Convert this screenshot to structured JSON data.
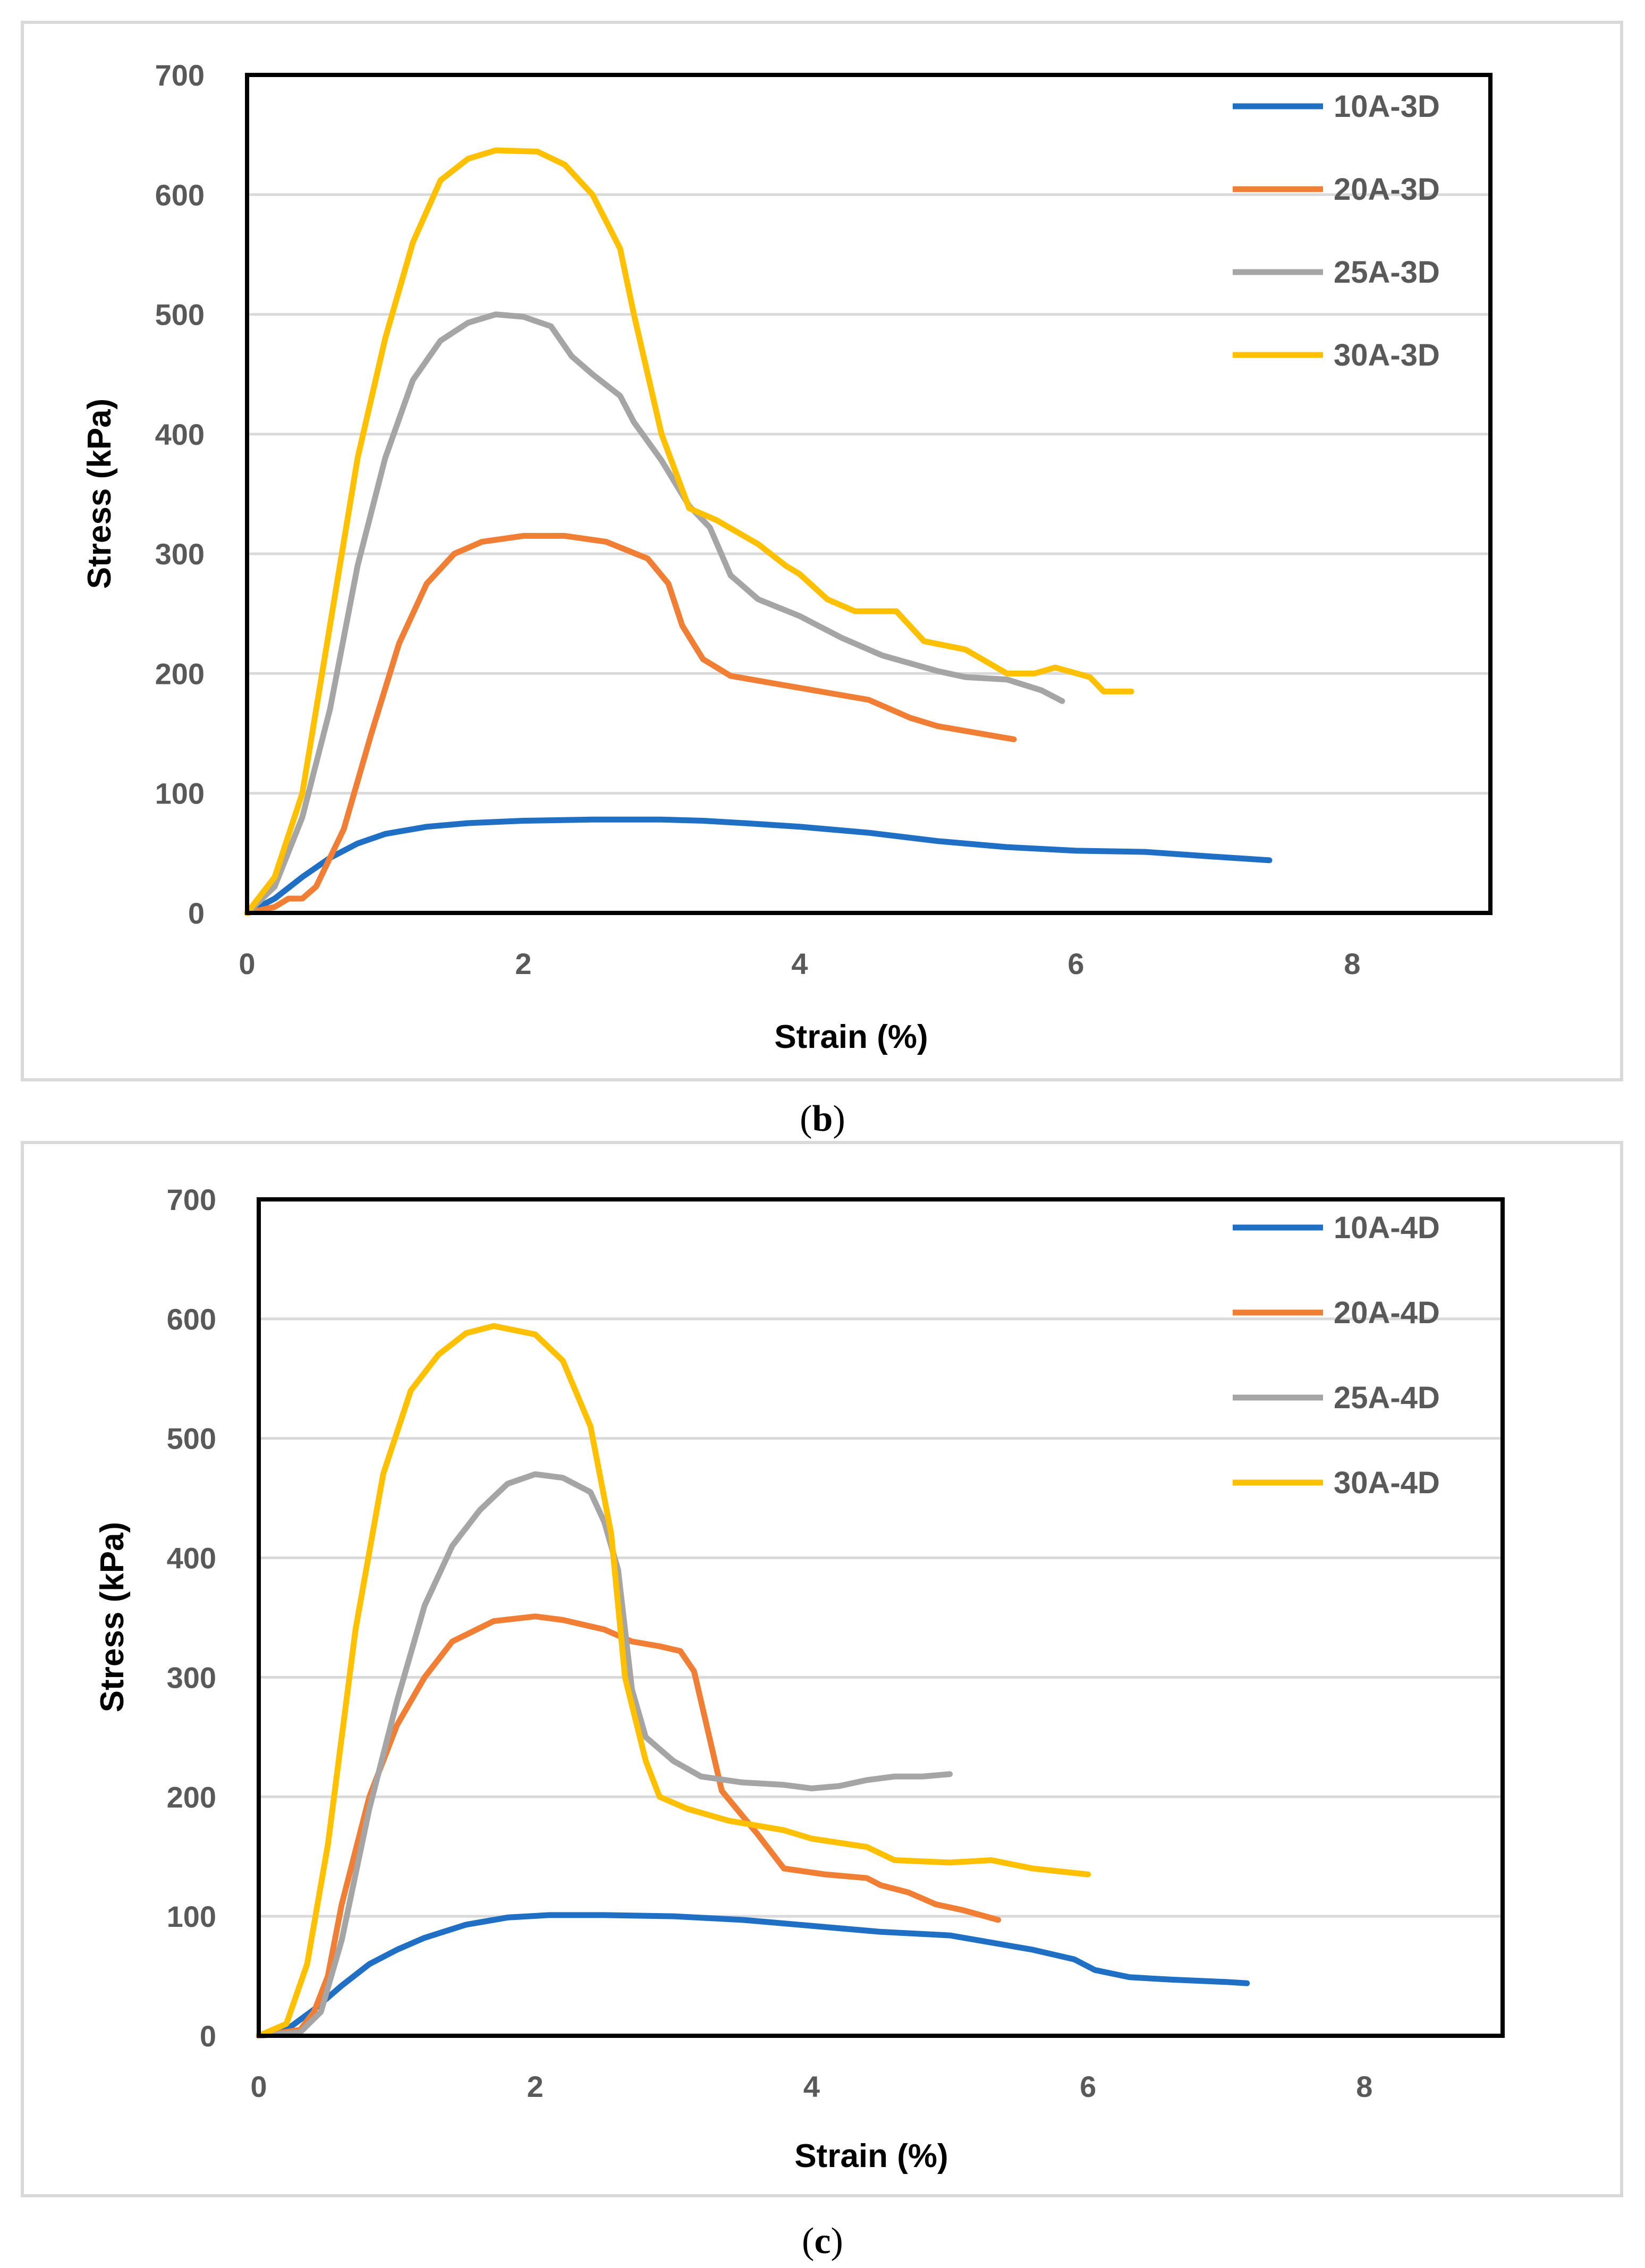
{
  "chart_data": [
    {
      "type": "line",
      "caption": "(b)",
      "caption_open": "(",
      "caption_letter": "b",
      "caption_close": ")",
      "xlabel": "Strain (%)",
      "ylabel": "Stress (kPa)",
      "xlim": [
        0,
        9
      ],
      "ylim": [
        0,
        700
      ],
      "xticks": [
        "0",
        "2",
        "4",
        "6",
        "8"
      ],
      "yticks": [
        "0",
        "100",
        "200",
        "300",
        "400",
        "500",
        "600",
        "700"
      ],
      "grid": "horizontal",
      "legend_position": "top-right",
      "series": [
        {
          "name": "10A-3D",
          "color": "#1f6fc5",
          "points": [
            [
              0,
              0
            ],
            [
              0.2,
              12
            ],
            [
              0.4,
              30
            ],
            [
              0.6,
              46
            ],
            [
              0.8,
              58
            ],
            [
              1.0,
              66
            ],
            [
              1.3,
              72
            ],
            [
              1.6,
              75
            ],
            [
              2.0,
              77
            ],
            [
              2.5,
              78
            ],
            [
              3.0,
              78
            ],
            [
              3.3,
              77
            ],
            [
              3.6,
              75
            ],
            [
              4.0,
              72
            ],
            [
              4.5,
              67
            ],
            [
              5.0,
              60
            ],
            [
              5.5,
              55
            ],
            [
              6.0,
              52
            ],
            [
              6.5,
              51
            ],
            [
              7.0,
              47
            ],
            [
              7.4,
              44
            ]
          ]
        },
        {
          "name": "20A-3D",
          "color": "#f07f35",
          "points": [
            [
              0,
              0
            ],
            [
              0.2,
              5
            ],
            [
              0.3,
              12
            ],
            [
              0.4,
              12
            ],
            [
              0.5,
              22
            ],
            [
              0.7,
              70
            ],
            [
              0.9,
              150
            ],
            [
              1.1,
              225
            ],
            [
              1.3,
              275
            ],
            [
              1.5,
              300
            ],
            [
              1.7,
              310
            ],
            [
              2.0,
              315
            ],
            [
              2.3,
              315
            ],
            [
              2.6,
              310
            ],
            [
              2.9,
              296
            ],
            [
              3.05,
              275
            ],
            [
              3.15,
              240
            ],
            [
              3.3,
              212
            ],
            [
              3.5,
              198
            ],
            [
              3.8,
              192
            ],
            [
              4.2,
              184
            ],
            [
              4.5,
              178
            ],
            [
              4.8,
              163
            ],
            [
              5.0,
              156
            ],
            [
              5.3,
              150
            ],
            [
              5.55,
              145
            ]
          ]
        },
        {
          "name": "25A-3D",
          "color": "#a5a5a5",
          "points": [
            [
              0,
              0
            ],
            [
              0.2,
              22
            ],
            [
              0.4,
              80
            ],
            [
              0.6,
              170
            ],
            [
              0.8,
              290
            ],
            [
              1.0,
              380
            ],
            [
              1.2,
              445
            ],
            [
              1.4,
              478
            ],
            [
              1.6,
              493
            ],
            [
              1.8,
              500
            ],
            [
              2.0,
              498
            ],
            [
              2.2,
              490
            ],
            [
              2.35,
              465
            ],
            [
              2.5,
              450
            ],
            [
              2.7,
              432
            ],
            [
              2.8,
              410
            ],
            [
              3.0,
              378
            ],
            [
              3.2,
              340
            ],
            [
              3.35,
              322
            ],
            [
              3.5,
              282
            ],
            [
              3.7,
              262
            ],
            [
              4.0,
              248
            ],
            [
              4.3,
              230
            ],
            [
              4.6,
              215
            ],
            [
              5.0,
              202
            ],
            [
              5.2,
              197
            ],
            [
              5.5,
              195
            ],
            [
              5.75,
              186
            ],
            [
              5.9,
              177
            ]
          ]
        },
        {
          "name": "30A-3D",
          "color": "#ffc000",
          "points": [
            [
              0,
              0
            ],
            [
              0.2,
              30
            ],
            [
              0.4,
              100
            ],
            [
              0.6,
              240
            ],
            [
              0.8,
              380
            ],
            [
              1.0,
              480
            ],
            [
              1.2,
              560
            ],
            [
              1.4,
              612
            ],
            [
              1.6,
              630
            ],
            [
              1.8,
              637
            ],
            [
              2.1,
              636
            ],
            [
              2.3,
              625
            ],
            [
              2.5,
              600
            ],
            [
              2.7,
              555
            ],
            [
              2.8,
              500
            ],
            [
              3.0,
              400
            ],
            [
              3.2,
              338
            ],
            [
              3.4,
              328
            ],
            [
              3.7,
              308
            ],
            [
              3.9,
              290
            ],
            [
              4.0,
              283
            ],
            [
              4.2,
              262
            ],
            [
              4.4,
              252
            ],
            [
              4.7,
              252
            ],
            [
              4.9,
              227
            ],
            [
              5.2,
              220
            ],
            [
              5.5,
              200
            ],
            [
              5.7,
              200
            ],
            [
              5.85,
              205
            ],
            [
              6.1,
              197
            ],
            [
              6.2,
              185
            ],
            [
              6.4,
              185
            ]
          ]
        }
      ]
    },
    {
      "type": "line",
      "caption": "(c)",
      "caption_open": "(",
      "caption_letter": "c",
      "caption_close": ")",
      "xlabel": "Strain (%)",
      "ylabel": "Stress (kPa)",
      "xlim": [
        0,
        9
      ],
      "ylim": [
        0,
        700
      ],
      "xticks": [
        "0",
        "2",
        "4",
        "6",
        "8"
      ],
      "yticks": [
        "0",
        "100",
        "200",
        "300",
        "400",
        "500",
        "600",
        "700"
      ],
      "grid": "horizontal",
      "legend_position": "top-right",
      "series": [
        {
          "name": "10A-4D",
          "color": "#1f6fc5",
          "points": [
            [
              0,
              0
            ],
            [
              0.2,
              5
            ],
            [
              0.4,
              22
            ],
            [
              0.6,
              42
            ],
            [
              0.8,
              60
            ],
            [
              1.0,
              72
            ],
            [
              1.2,
              82
            ],
            [
              1.5,
              93
            ],
            [
              1.8,
              99
            ],
            [
              2.1,
              101
            ],
            [
              2.5,
              101
            ],
            [
              3.0,
              100
            ],
            [
              3.5,
              97
            ],
            [
              4.0,
              92
            ],
            [
              4.5,
              87
            ],
            [
              5.0,
              84
            ],
            [
              5.3,
              78
            ],
            [
              5.6,
              72
            ],
            [
              5.9,
              64
            ],
            [
              6.05,
              55
            ],
            [
              6.3,
              49
            ],
            [
              6.6,
              47
            ],
            [
              7.0,
              45
            ],
            [
              7.15,
              44
            ]
          ]
        },
        {
          "name": "20A-4D",
          "color": "#f07f35",
          "points": [
            [
              0,
              0
            ],
            [
              0.3,
              5
            ],
            [
              0.4,
              20
            ],
            [
              0.5,
              50
            ],
            [
              0.6,
              110
            ],
            [
              0.8,
              200
            ],
            [
              1.0,
              260
            ],
            [
              1.2,
              300
            ],
            [
              1.4,
              330
            ],
            [
              1.7,
              347
            ],
            [
              2.0,
              351
            ],
            [
              2.2,
              348
            ],
            [
              2.5,
              340
            ],
            [
              2.7,
              330
            ],
            [
              2.9,
              326
            ],
            [
              3.05,
              322
            ],
            [
              3.15,
              305
            ],
            [
              3.25,
              255
            ],
            [
              3.35,
              205
            ],
            [
              3.6,
              170
            ],
            [
              3.8,
              140
            ],
            [
              4.1,
              135
            ],
            [
              4.4,
              132
            ],
            [
              4.5,
              126
            ],
            [
              4.7,
              120
            ],
            [
              4.9,
              110
            ],
            [
              5.1,
              105
            ],
            [
              5.35,
              97
            ]
          ]
        },
        {
          "name": "25A-4D",
          "color": "#a5a5a5",
          "points": [
            [
              0,
              0
            ],
            [
              0.3,
              3
            ],
            [
              0.45,
              20
            ],
            [
              0.6,
              80
            ],
            [
              0.8,
              190
            ],
            [
              1.0,
              280
            ],
            [
              1.2,
              360
            ],
            [
              1.4,
              410
            ],
            [
              1.6,
              440
            ],
            [
              1.8,
              462
            ],
            [
              2.0,
              470
            ],
            [
              2.2,
              467
            ],
            [
              2.4,
              455
            ],
            [
              2.5,
              430
            ],
            [
              2.6,
              390
            ],
            [
              2.7,
              290
            ],
            [
              2.8,
              250
            ],
            [
              3.0,
              230
            ],
            [
              3.2,
              217
            ],
            [
              3.5,
              212
            ],
            [
              3.8,
              210
            ],
            [
              4.0,
              207
            ],
            [
              4.2,
              209
            ],
            [
              4.4,
              214
            ],
            [
              4.6,
              217
            ],
            [
              4.8,
              217
            ],
            [
              5.0,
              219
            ]
          ]
        },
        {
          "name": "30A-4D",
          "color": "#ffc000",
          "points": [
            [
              0,
              0
            ],
            [
              0.2,
              10
            ],
            [
              0.35,
              60
            ],
            [
              0.5,
              160
            ],
            [
              0.7,
              340
            ],
            [
              0.9,
              470
            ],
            [
              1.1,
              540
            ],
            [
              1.3,
              570
            ],
            [
              1.5,
              588
            ],
            [
              1.7,
              594
            ],
            [
              2.0,
              587
            ],
            [
              2.2,
              565
            ],
            [
              2.4,
              510
            ],
            [
              2.55,
              420
            ],
            [
              2.65,
              300
            ],
            [
              2.8,
              230
            ],
            [
              2.9,
              200
            ],
            [
              3.1,
              190
            ],
            [
              3.4,
              180
            ],
            [
              3.8,
              172
            ],
            [
              4.0,
              165
            ],
            [
              4.4,
              158
            ],
            [
              4.6,
              147
            ],
            [
              5.0,
              145
            ],
            [
              5.3,
              147
            ],
            [
              5.6,
              140
            ],
            [
              6.0,
              135
            ]
          ]
        }
      ]
    }
  ]
}
